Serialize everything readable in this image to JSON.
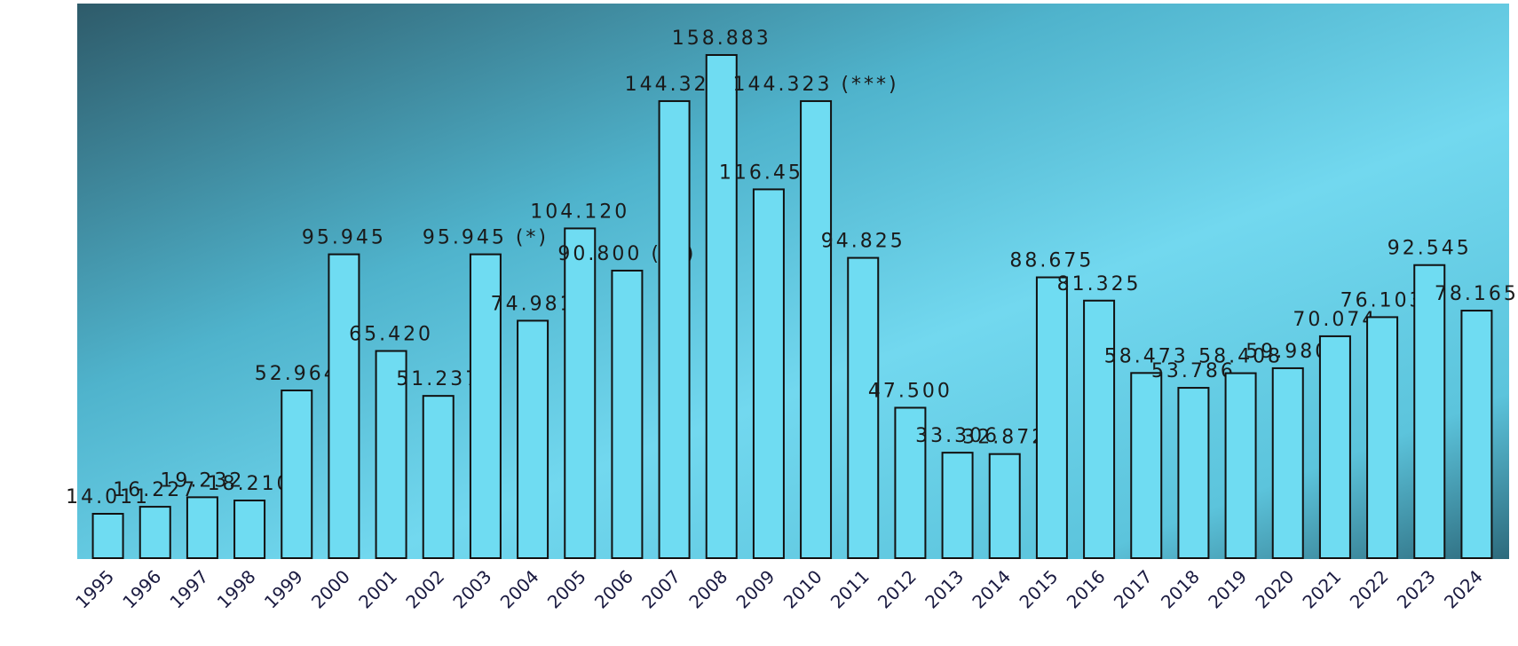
{
  "chart_data": {
    "type": "bar",
    "categories": [
      "1995",
      "1996",
      "1997",
      "1998",
      "1999",
      "2000",
      "2001",
      "2002",
      "2003",
      "2004",
      "2005",
      "2006",
      "2007",
      "2008",
      "2009",
      "2010",
      "2011",
      "2012",
      "2013",
      "2014",
      "2015",
      "2016",
      "2017",
      "2018",
      "2019",
      "2020",
      "2021",
      "2022",
      "2023",
      "2024"
    ],
    "values": [
      14.011,
      16.227,
      19.232,
      18.21,
      52.964,
      95.945,
      65.42,
      51.237,
      95.945,
      74.981,
      104.12,
      90.8,
      144.323,
      158.883,
      116.457,
      144.323,
      94.825,
      47.5,
      33.306,
      32.872,
      88.675,
      81.325,
      58.473,
      53.786,
      58.408,
      59.98,
      70.074,
      76.103,
      92.545,
      78.165
    ],
    "value_labels": [
      "14.011",
      "16.227",
      "19.232",
      "18.210",
      "52.964",
      "95.945",
      "65.420",
      "51.237",
      "95.945 (*)",
      "74.981",
      "104.120",
      "90.800 (**)",
      "144.323",
      "158.883",
      "116.457",
      "144.323 (***)",
      "94.825",
      "47.500",
      "33.306",
      "32.872",
      "88.675",
      "81.325",
      "58.473",
      "53.786",
      "58.408",
      "59.980",
      "70.074",
      "76.103",
      "92.545",
      "78.165"
    ],
    "color": "#6fdcf2",
    "ylim": [
      0,
      160
    ]
  }
}
